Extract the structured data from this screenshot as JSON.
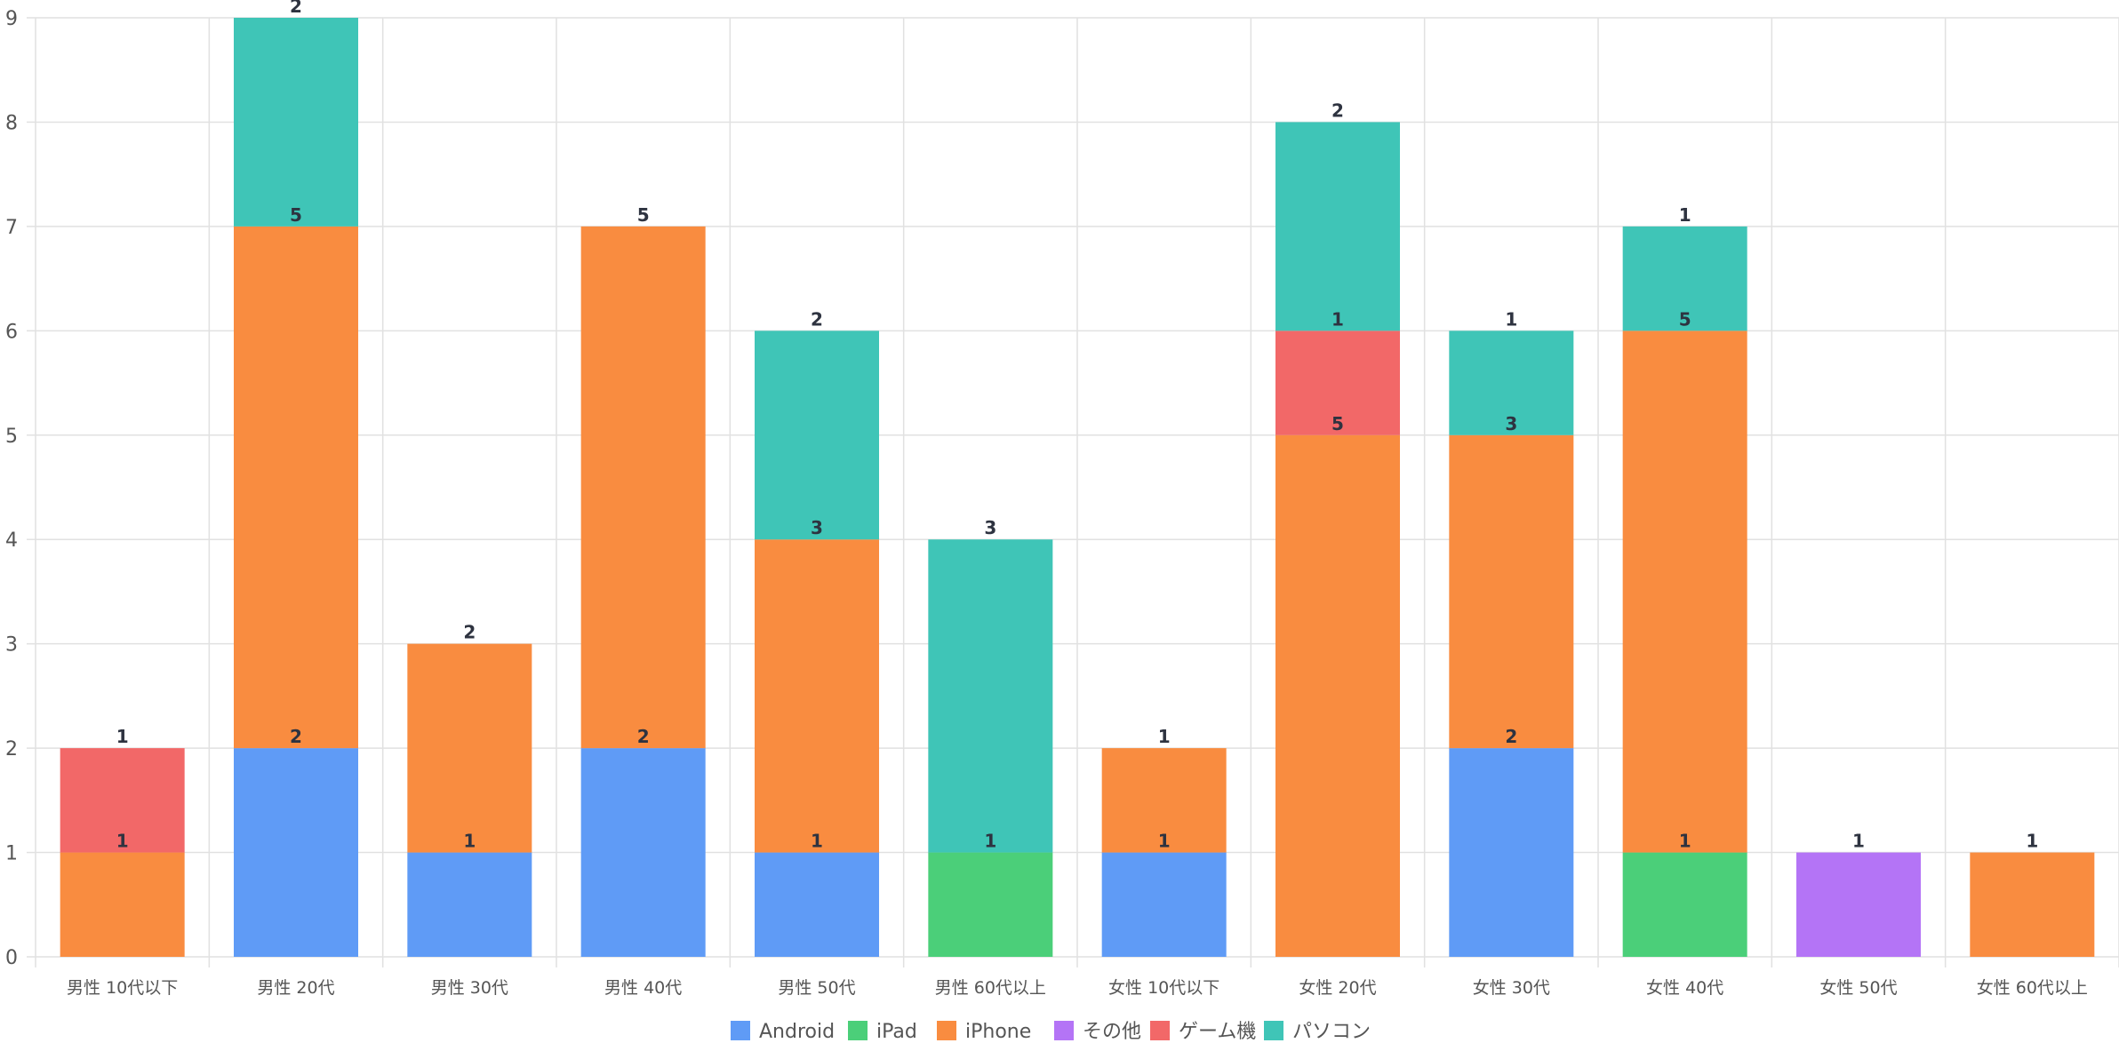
{
  "chart_data": {
    "type": "bar",
    "stacked": true,
    "categories": [
      "男性 10代以下",
      "男性 20代",
      "男性 30代",
      "男性 40代",
      "男性 50代",
      "男性 60代以上",
      "女性 10代以下",
      "女性 20代",
      "女性 30代",
      "女性 40代",
      "女性 50代",
      "女性 60代以上"
    ],
    "series": [
      {
        "name": "Android",
        "color": "#5f9bf6",
        "values": [
          0,
          2,
          1,
          2,
          1,
          0,
          1,
          0,
          2,
          0,
          0,
          0
        ]
      },
      {
        "name": "iPad",
        "color": "#4bcf79",
        "values": [
          0,
          0,
          0,
          0,
          0,
          1,
          0,
          0,
          0,
          1,
          0,
          0
        ]
      },
      {
        "name": "iPhone",
        "color": "#f98c40",
        "values": [
          1,
          5,
          2,
          5,
          3,
          0,
          1,
          5,
          3,
          5,
          0,
          1
        ]
      },
      {
        "name": "その他",
        "color": "#b474f6",
        "values": [
          0,
          0,
          0,
          0,
          0,
          0,
          0,
          0,
          0,
          0,
          1,
          0
        ]
      },
      {
        "name": "ゲーム機",
        "color": "#f26868",
        "values": [
          1,
          0,
          0,
          0,
          0,
          0,
          0,
          1,
          0,
          0,
          0,
          0
        ]
      },
      {
        "name": "パソコン",
        "color": "#3fc5b7",
        "values": [
          0,
          2,
          0,
          0,
          2,
          3,
          0,
          2,
          1,
          1,
          0,
          0
        ]
      }
    ],
    "ylim": [
      0,
      9
    ],
    "yticks": [
      0,
      1,
      2,
      3,
      4,
      5,
      6,
      7,
      8,
      9
    ],
    "grid": true,
    "legend": "bottom-center",
    "title": "",
    "xlabel": "",
    "ylabel": ""
  }
}
